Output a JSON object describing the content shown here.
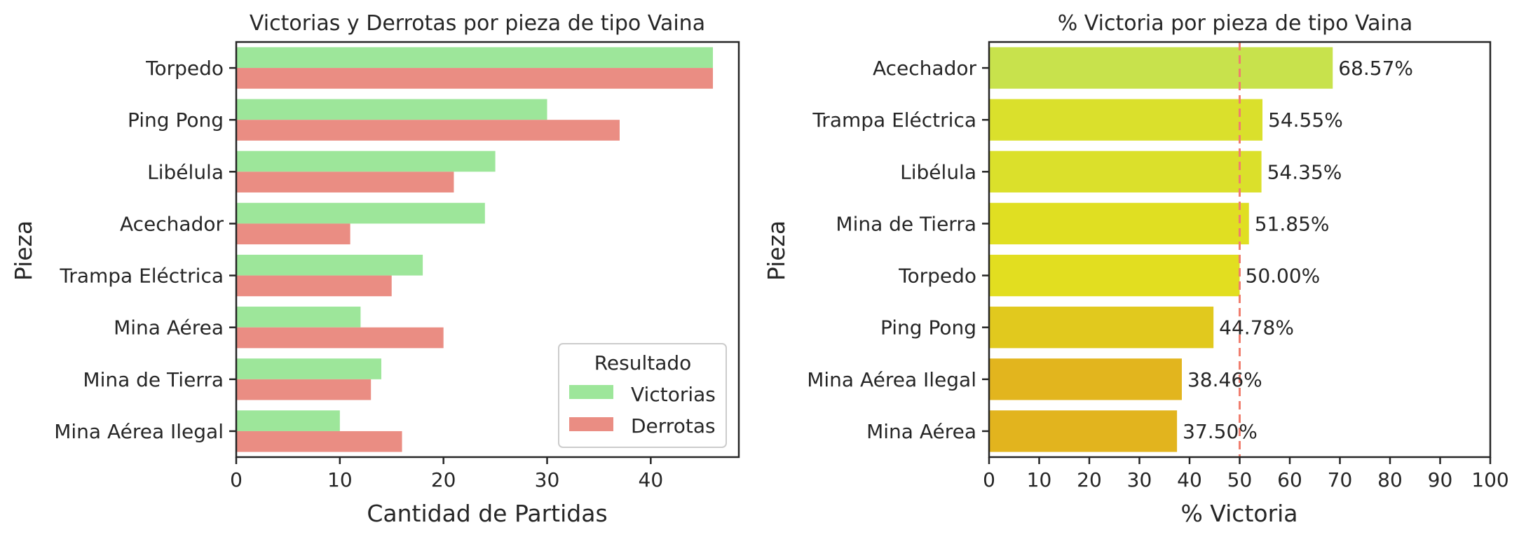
{
  "chart_data": [
    {
      "type": "bar",
      "orientation": "horizontal",
      "title": "Victorias y Derrotas por pieza de tipo Vaina",
      "xlabel": "Cantidad de Partidas",
      "ylabel": "Pieza",
      "categories": [
        "Torpedo",
        "Ping Pong",
        "Libélula",
        "Acechador",
        "Trampa Eléctrica",
        "Mina Aérea",
        "Mina de Tierra",
        "Mina Aérea Ilegal"
      ],
      "series": [
        {
          "name": "Victorias",
          "color": "#9de69a",
          "values": [
            46,
            30,
            25,
            24,
            18,
            12,
            14,
            10
          ]
        },
        {
          "name": "Derrotas",
          "color": "#ea8d83",
          "values": [
            46,
            37,
            21,
            11,
            15,
            20,
            13,
            16
          ]
        }
      ],
      "xlim": [
        0,
        48.5
      ],
      "xticks": [
        0,
        10,
        20,
        30,
        40
      ],
      "grid": false,
      "legend": {
        "title": "Resultado",
        "placement": "lower-right"
      }
    },
    {
      "type": "bar",
      "orientation": "horizontal",
      "title": "% Victoria por pieza de tipo Vaina",
      "xlabel": "% Victoria",
      "ylabel": "Pieza",
      "categories": [
        "Acechador",
        "Trampa Eléctrica",
        "Libélula",
        "Mina de Tierra",
        "Torpedo",
        "Ping Pong",
        "Mina Aérea Ilegal",
        "Mina Aérea"
      ],
      "values": [
        68.57,
        54.55,
        54.35,
        51.85,
        50.0,
        44.78,
        38.46,
        37.5
      ],
      "labels": [
        "68.57%",
        "54.55%",
        "54.35%",
        "51.85%",
        "50.00%",
        "44.78%",
        "38.46%",
        "37.50%"
      ],
      "colors": [
        "#c8e24c",
        "#dae02c",
        "#dbe02b",
        "#e0df22",
        "#e2de20",
        "#e1c91e",
        "#e2b51e",
        "#e2b41e"
      ],
      "reference_line": {
        "value": 50,
        "color": "#f07d6e",
        "style": "dashed"
      },
      "xlim": [
        0,
        100
      ],
      "xticks": [
        0,
        10,
        20,
        30,
        40,
        50,
        60,
        70,
        80,
        90,
        100
      ],
      "grid": false
    }
  ]
}
